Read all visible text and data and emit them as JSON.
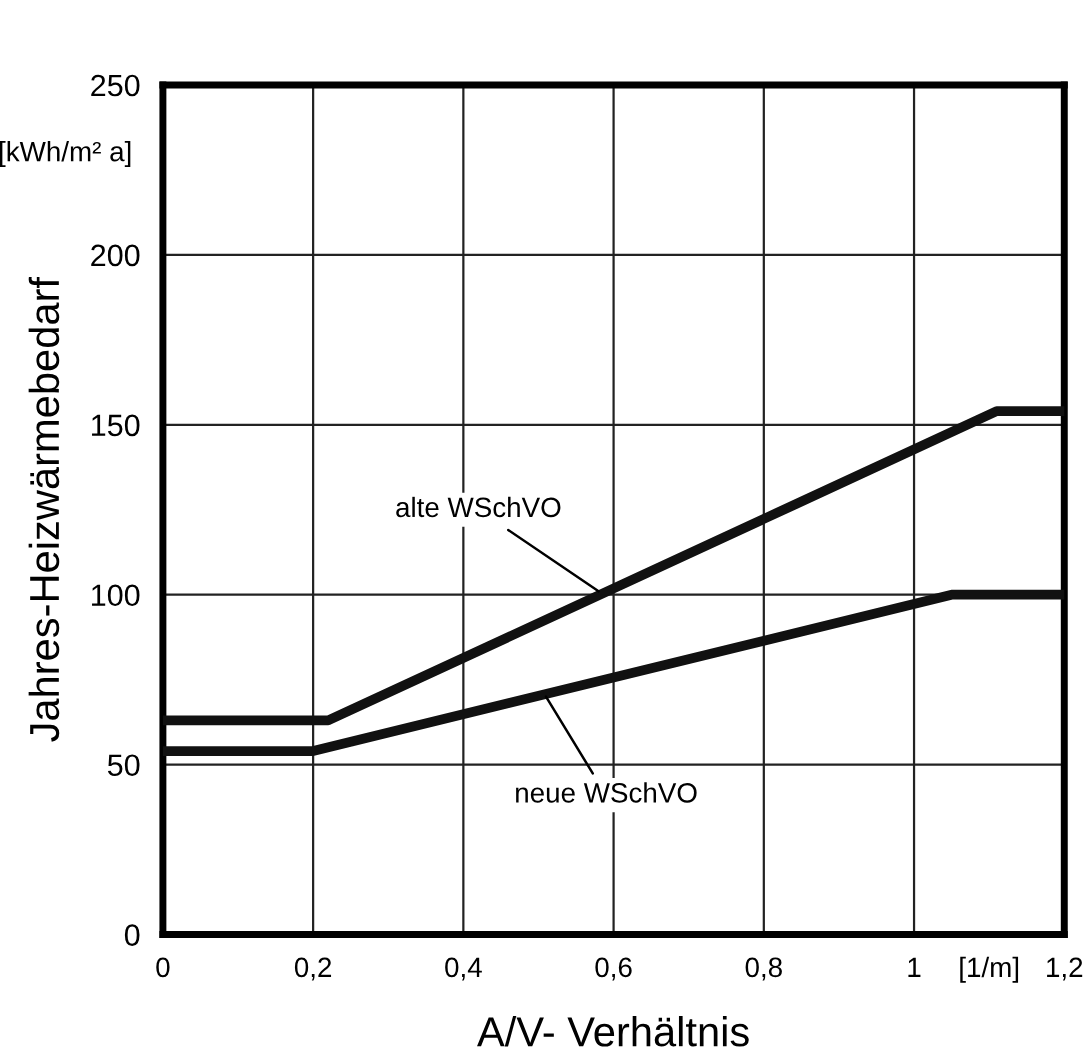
{
  "chart_data": {
    "type": "line",
    "xlabel": "A/V- Verhältnis",
    "ylabel": "Jahres-Heizwärmebedarf",
    "series": [
      {
        "color": "#111111",
        "x": [
          0,
          0.22,
          1.11,
          1.2
        ],
        "values": [
          63,
          63,
          154,
          154
        ]
      },
      {
        "color": "#111111",
        "x": [
          0,
          0.2,
          1.05,
          1.2
        ],
        "values": [
          54,
          54,
          100,
          100
        ]
      }
    ],
    "xlim": [
      0,
      1.2
    ],
    "ylim": [
      0,
      250
    ],
    "xticks": [
      0,
      {
        "value": 0.2,
        "label": "0,2"
      },
      {
        "value": 0.4,
        "label": "0,4"
      },
      {
        "value": 0.6,
        "label": "0,6"
      },
      {
        "value": 0.8,
        "label": "0,8"
      },
      1,
      {
        "value": 1.1,
        "label": "[1/m]"
      },
      {
        "value": 1.2,
        "label": "1,2"
      }
    ],
    "yticks": [
      0,
      50,
      100,
      150,
      200,
      250
    ],
    "grid": true,
    "marker": "none",
    "line_style": "solid",
    "annotations": [
      "[kWh/m² a]",
      {
        "text": "alte WSchVO",
        "x": 0.58,
        "y": 101
      },
      {
        "text": "neue WSchVO",
        "x": 0.51,
        "y": 70
      }
    ]
  }
}
